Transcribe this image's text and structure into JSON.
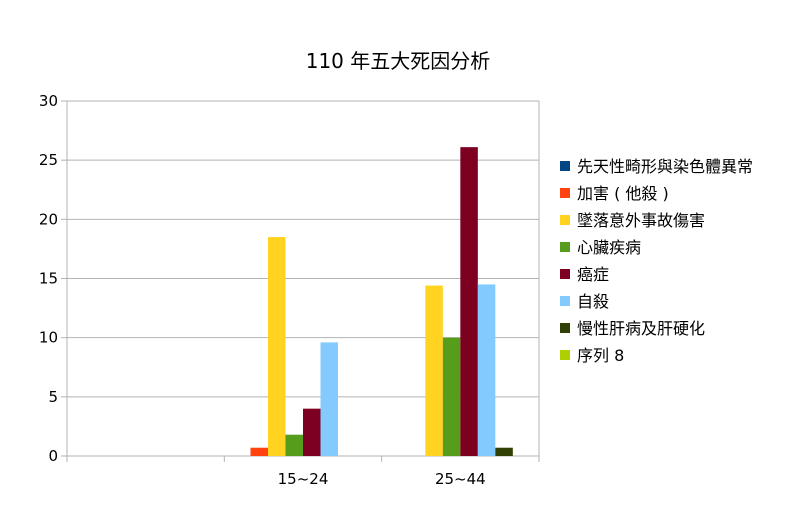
{
  "chart_data": {
    "type": "bar",
    "title": "110 年五大死因分析",
    "xlabel": "",
    "ylabel": "",
    "ylim": [
      0,
      30
    ],
    "ytick_step": 5,
    "grid": true,
    "legend_position": "right",
    "categories": [
      "",
      "15~24",
      "25~44"
    ],
    "series": [
      {
        "name": "先天性畸形與染色體異常",
        "color": "#004586",
        "values": [
          0,
          0,
          0
        ]
      },
      {
        "name": "加害 ( 他殺 )",
        "color": "#ff420e",
        "values": [
          0,
          0.7,
          0
        ]
      },
      {
        "name": "墜落意外事故傷害",
        "color": "#ffd320",
        "values": [
          0,
          18.5,
          14.4
        ]
      },
      {
        "name": "心臟疾病",
        "color": "#579d1c",
        "values": [
          0,
          1.8,
          10.0
        ]
      },
      {
        "name": "癌症",
        "color": "#7e0021",
        "values": [
          0,
          4.0,
          26.1
        ]
      },
      {
        "name": "自殺",
        "color": "#83caff",
        "values": [
          0,
          9.6,
          14.5
        ]
      },
      {
        "name": "慢性肝病及肝硬化",
        "color": "#314004",
        "values": [
          0,
          0,
          0.7
        ]
      },
      {
        "name": "序列 8",
        "color": "#aecf00",
        "values": [
          0,
          0,
          0
        ]
      }
    ]
  }
}
